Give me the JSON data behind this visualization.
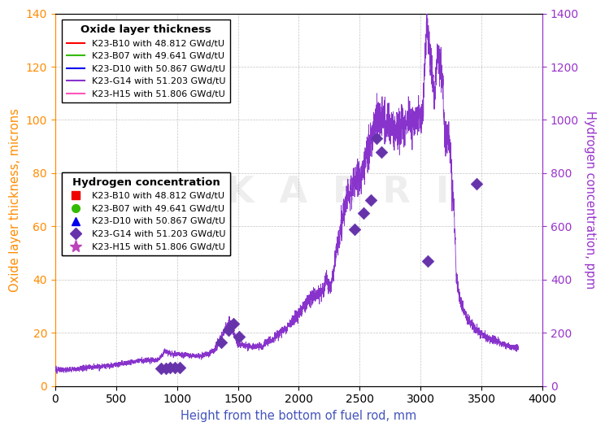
{
  "xlabel": "Height from the bottom of fuel rod, mm",
  "ylabel_left": "Oxide layer thickness, microns",
  "ylabel_right": "Hydrogen concentration, ppm",
  "xlim": [
    0,
    4000
  ],
  "ylim_left": [
    0,
    140
  ],
  "ylim_right": [
    0,
    1400
  ],
  "left_axis_color": "#FF8C00",
  "right_axis_color": "#9933CC",
  "xlabel_color": "#4455BB",
  "background_color": "#ffffff",
  "line_color": "#8833CC",
  "oxide_legend": {
    "title": "Oxide layer thickness",
    "entries": [
      {
        "label": "K23-B10 with 48.812 GWd/tU",
        "color": "#FF0000"
      },
      {
        "label": "K23-B07 with 49.641 GWd/tU",
        "color": "#33BB00"
      },
      {
        "label": "K23-D10 with 50.867 GWd/tU",
        "color": "#0000EE"
      },
      {
        "label": "K23-G14 with 51.203 GWd/tU",
        "color": "#8833CC"
      },
      {
        "label": "K23-H15 with 51.806 GWd/tU",
        "color": "#FF55BB"
      }
    ]
  },
  "hydro_legend": {
    "title": "Hydrogen concentration",
    "entries": [
      {
        "label": "K23-B10 with 48.812 GWd/tU",
        "color": "#EE0000",
        "marker": "s"
      },
      {
        "label": "K23-B07 with 49.641 GWd/tU",
        "color": "#33BB00",
        "marker": "o"
      },
      {
        "label": "K23-D10 with 50.867 GWd/tU",
        "color": "#0000EE",
        "marker": "^"
      },
      {
        "label": "K23-G14 with 51.203 GWd/tU",
        "color": "#6633AA",
        "marker": "D"
      },
      {
        "label": "K23-H15 with 51.806 GWd/tU",
        "color": "#BB44BB",
        "marker": "*"
      }
    ]
  },
  "g14_scatter_x": [
    870,
    910,
    940,
    980,
    1020,
    1360,
    1420,
    1460,
    1510,
    2460,
    2530,
    2590,
    2640,
    2680,
    3060,
    3460
  ],
  "g14_scatter_y": [
    65,
    65,
    68,
    68,
    68,
    165,
    210,
    235,
    185,
    590,
    650,
    700,
    930,
    880,
    470,
    760
  ],
  "seed": 123
}
